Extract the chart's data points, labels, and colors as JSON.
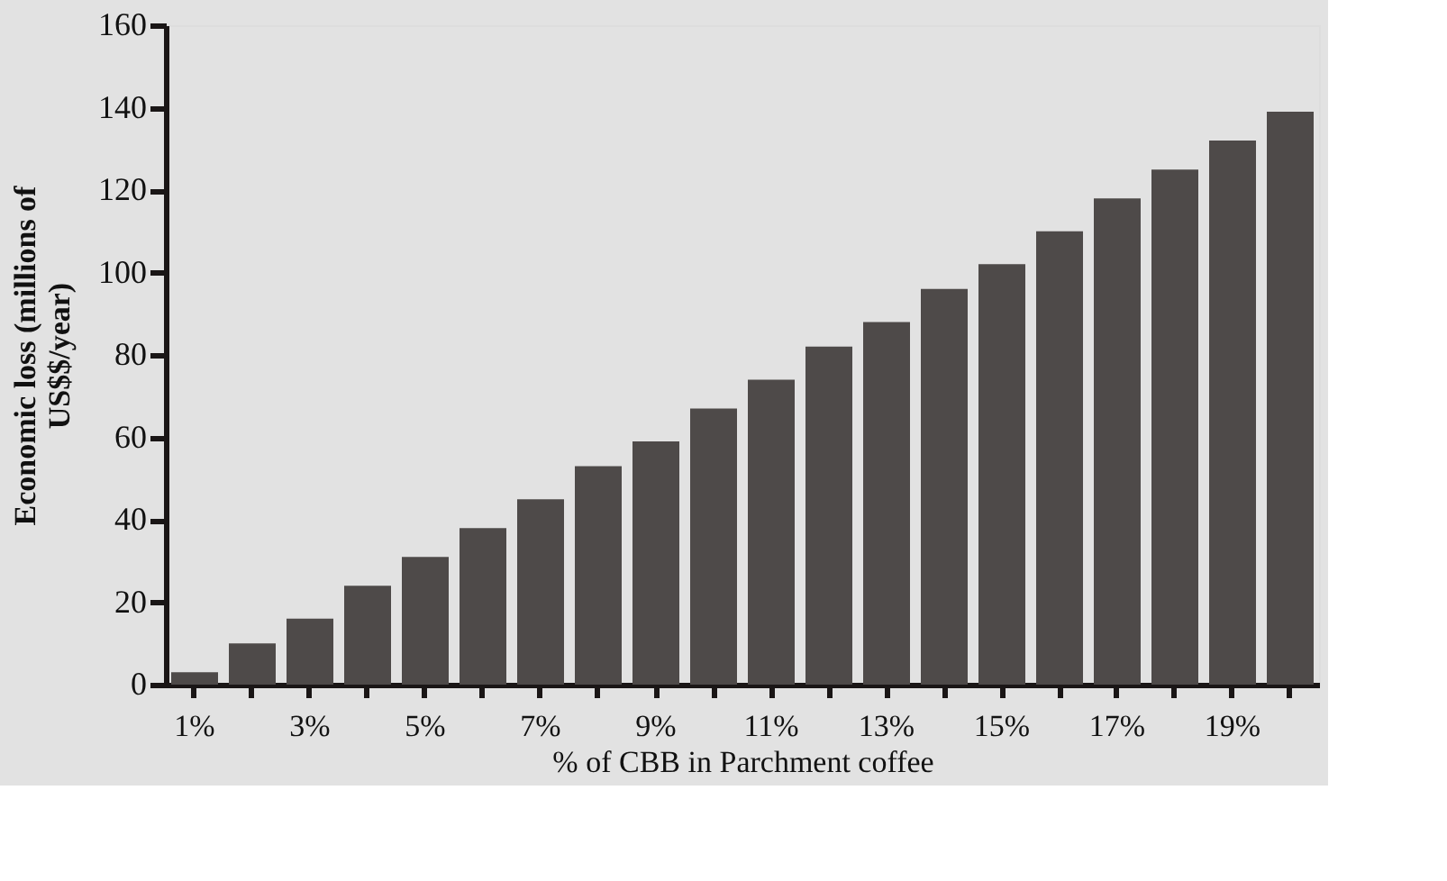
{
  "chart_data": {
    "type": "bar",
    "ylabel": "Economic loss (millions of US$$/year)",
    "xlabel": "% of CBB in Parchment coffee",
    "categories": [
      "1%",
      null,
      "3%",
      null,
      "5%",
      null,
      "7%",
      null,
      "9%",
      null,
      "11%",
      null,
      "13%",
      null,
      "15%",
      null,
      "17%",
      null,
      "19%",
      null
    ],
    "values": [
      3,
      10,
      16,
      24,
      31,
      38,
      45,
      53,
      59,
      67,
      74,
      82,
      88,
      96,
      102,
      110,
      118,
      125,
      132,
      139
    ],
    "color": "#4e4a49",
    "ylim": [
      0,
      160
    ],
    "yticks": [
      0,
      20,
      40,
      60,
      80,
      100,
      120,
      140,
      160
    ]
  }
}
